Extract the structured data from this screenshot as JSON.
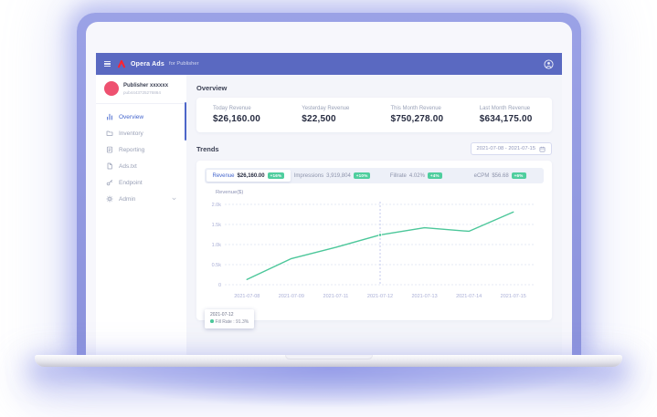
{
  "topbar": {
    "brand": "Opera Ads",
    "brand_suffix": "for Publisher"
  },
  "sidebar": {
    "publisher_name": "Publisher xxxxxx",
    "publisher_id": "pub4443725276864",
    "items": [
      {
        "label": "Overview",
        "icon": "dashboard-icon",
        "active": true
      },
      {
        "label": "Inventory",
        "icon": "folder-icon",
        "active": false
      },
      {
        "label": "Reporting",
        "icon": "report-icon",
        "active": false
      },
      {
        "label": "Ads.txt",
        "icon": "file-icon",
        "active": false
      },
      {
        "label": "Endpoint",
        "icon": "endpoint-icon",
        "active": false
      },
      {
        "label": "Admin",
        "icon": "gear-icon",
        "active": false,
        "expandable": true
      }
    ]
  },
  "overview": {
    "title": "Overview",
    "stats": [
      {
        "label": "Today Revenue",
        "value": "$26,160.00"
      },
      {
        "label": "Yesterday Revenue",
        "value": "$22,500"
      },
      {
        "label": "This Month Revenue",
        "value": "$750,278.00"
      },
      {
        "label": "Last Month Revenue",
        "value": "$634,175.00"
      }
    ]
  },
  "trends": {
    "title": "Trends",
    "date_range": "2021-07-08 - 2021-07-15",
    "tabs": [
      {
        "label": "Revenue",
        "value": "$26,160.00",
        "badge": "+16%",
        "active": true
      },
      {
        "label": "Impressions",
        "value": "3,919,804",
        "badge": "+10%",
        "active": false
      },
      {
        "label": "Fillrate",
        "value": "4.02%",
        "badge": "+4%",
        "active": false
      },
      {
        "label": "eCPM",
        "value": "$56.68",
        "badge": "+6%",
        "active": false
      }
    ]
  },
  "chart_data": {
    "type": "line",
    "title": "Revenue($)",
    "series_name": "Revenue",
    "categories": [
      "2021-07-08",
      "2021-07-09",
      "2021-07-11",
      "2021-07-12",
      "2021-07-13",
      "2021-07-14",
      "2021-07-15"
    ],
    "values": [
      130,
      650,
      930,
      1240,
      1420,
      1330,
      1810
    ],
    "ylim": [
      0,
      2000
    ],
    "yticks": [
      0,
      500,
      1000,
      1500,
      2000
    ],
    "ytick_labels": [
      "0",
      "0.5k",
      "1.0k",
      "1.5k",
      "2.0k"
    ],
    "grid": "dashed-horizontal",
    "legend_position": "none",
    "highlight_index": 3,
    "tooltip": {
      "date": "2021-07-12",
      "text": "Fill Rate : 91.3%"
    }
  },
  "colors": {
    "topbar": "#5a69c1",
    "accent": "#4365cd",
    "badge_green": "#4fce9e",
    "line_green": "#4cc79a",
    "avatar_pink": "#ee5170",
    "logo_red": "#ff2230",
    "grid": "#dde1f2",
    "axis_text": "#a9aed6"
  }
}
